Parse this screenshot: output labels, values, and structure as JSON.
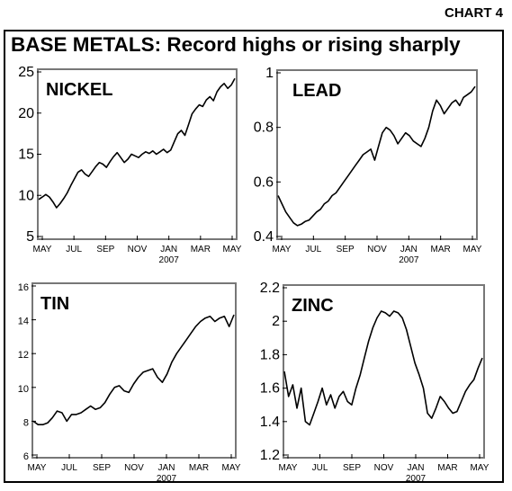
{
  "header": {
    "label": "CHART 4"
  },
  "title": "BASE METALS: Record highs or rising sharply",
  "colors": {
    "line": "#000000",
    "background": "#ffffff"
  },
  "chart_data": [
    {
      "type": "line",
      "title": "NICKEL",
      "x_ticks": [
        "MAY",
        "JUL",
        "SEP",
        "NOV",
        "JAN",
        "MAR",
        "MAY"
      ],
      "x_sublabel": "2007",
      "yticks": [
        5,
        10,
        15,
        20,
        25
      ],
      "ylim": [
        5,
        25
      ],
      "series": [
        {
          "values": [
            9.5,
            9.8,
            10.1,
            9.8,
            9.2,
            8.5,
            9.0,
            9.6,
            10.3,
            11.2,
            12.0,
            12.8,
            13.1,
            12.6,
            12.3,
            12.9,
            13.5,
            14.0,
            13.8,
            13.4,
            14.1,
            14.7,
            15.2,
            14.6,
            14.0,
            14.4,
            15.0,
            14.8,
            14.6,
            15.0,
            15.3,
            15.1,
            15.4,
            15.0,
            15.3,
            15.6,
            15.2,
            15.5,
            16.5,
            17.5,
            17.9,
            17.3,
            18.6,
            19.9,
            20.5,
            21.0,
            20.8,
            21.6,
            22.0,
            21.5,
            22.6,
            23.2,
            23.6,
            23.0,
            23.4,
            24.2
          ]
        }
      ]
    },
    {
      "type": "line",
      "title": "LEAD",
      "x_ticks": [
        "MAY",
        "JUL",
        "SEP",
        "NOV",
        "JAN",
        "MAR",
        "MAY"
      ],
      "x_sublabel": "2007",
      "yticks": [
        0.4,
        0.6,
        0.8,
        1.0
      ],
      "ylim": [
        0.4,
        1.0
      ],
      "series": [
        {
          "values": [
            0.55,
            0.52,
            0.49,
            0.47,
            0.45,
            0.44,
            0.445,
            0.455,
            0.46,
            0.475,
            0.49,
            0.5,
            0.52,
            0.53,
            0.55,
            0.56,
            0.58,
            0.6,
            0.62,
            0.64,
            0.66,
            0.68,
            0.7,
            0.71,
            0.72,
            0.68,
            0.73,
            0.78,
            0.8,
            0.79,
            0.77,
            0.74,
            0.76,
            0.78,
            0.77,
            0.75,
            0.74,
            0.73,
            0.76,
            0.8,
            0.86,
            0.9,
            0.88,
            0.85,
            0.87,
            0.89,
            0.9,
            0.88,
            0.91,
            0.92,
            0.93,
            0.95
          ]
        }
      ]
    },
    {
      "type": "line",
      "title": "TIN",
      "x_ticks": [
        "MAY",
        "JUL",
        "SEP",
        "NOV",
        "JAN",
        "MAR",
        "MAY"
      ],
      "x_sublabel": "2007",
      "yticks": [
        6,
        8,
        10,
        12,
        14,
        16
      ],
      "ylim": [
        6,
        16
      ],
      "series": [
        {
          "values": [
            8.0,
            7.8,
            7.8,
            7.9,
            8.2,
            8.6,
            8.5,
            8.0,
            8.4,
            8.4,
            8.5,
            8.7,
            8.9,
            8.7,
            8.8,
            9.1,
            9.6,
            10.0,
            10.1,
            9.8,
            9.7,
            10.2,
            10.6,
            10.9,
            11.0,
            11.1,
            10.6,
            10.3,
            10.8,
            11.5,
            12.0,
            12.4,
            12.8,
            13.2,
            13.6,
            13.9,
            14.1,
            14.2,
            13.9,
            14.1,
            14.2,
            13.6,
            14.3
          ]
        }
      ]
    },
    {
      "type": "line",
      "title": "ZINC",
      "x_ticks": [
        "MAY",
        "JUL",
        "SEP",
        "NOV",
        "JAN",
        "MAR",
        "MAY"
      ],
      "x_sublabel": "2007",
      "yticks": [
        1.2,
        1.4,
        1.6,
        1.8,
        2.0,
        2.2
      ],
      "ylim": [
        1.2,
        2.2
      ],
      "series": [
        {
          "values": [
            1.7,
            1.55,
            1.62,
            1.48,
            1.6,
            1.4,
            1.38,
            1.45,
            1.52,
            1.6,
            1.5,
            1.56,
            1.48,
            1.55,
            1.58,
            1.52,
            1.5,
            1.6,
            1.68,
            1.78,
            1.88,
            1.96,
            2.02,
            2.06,
            2.05,
            2.03,
            2.06,
            2.05,
            2.02,
            1.95,
            1.85,
            1.75,
            1.68,
            1.6,
            1.45,
            1.42,
            1.48,
            1.55,
            1.52,
            1.48,
            1.45,
            1.46,
            1.52,
            1.58,
            1.62,
            1.65,
            1.72,
            1.78
          ]
        }
      ]
    }
  ]
}
